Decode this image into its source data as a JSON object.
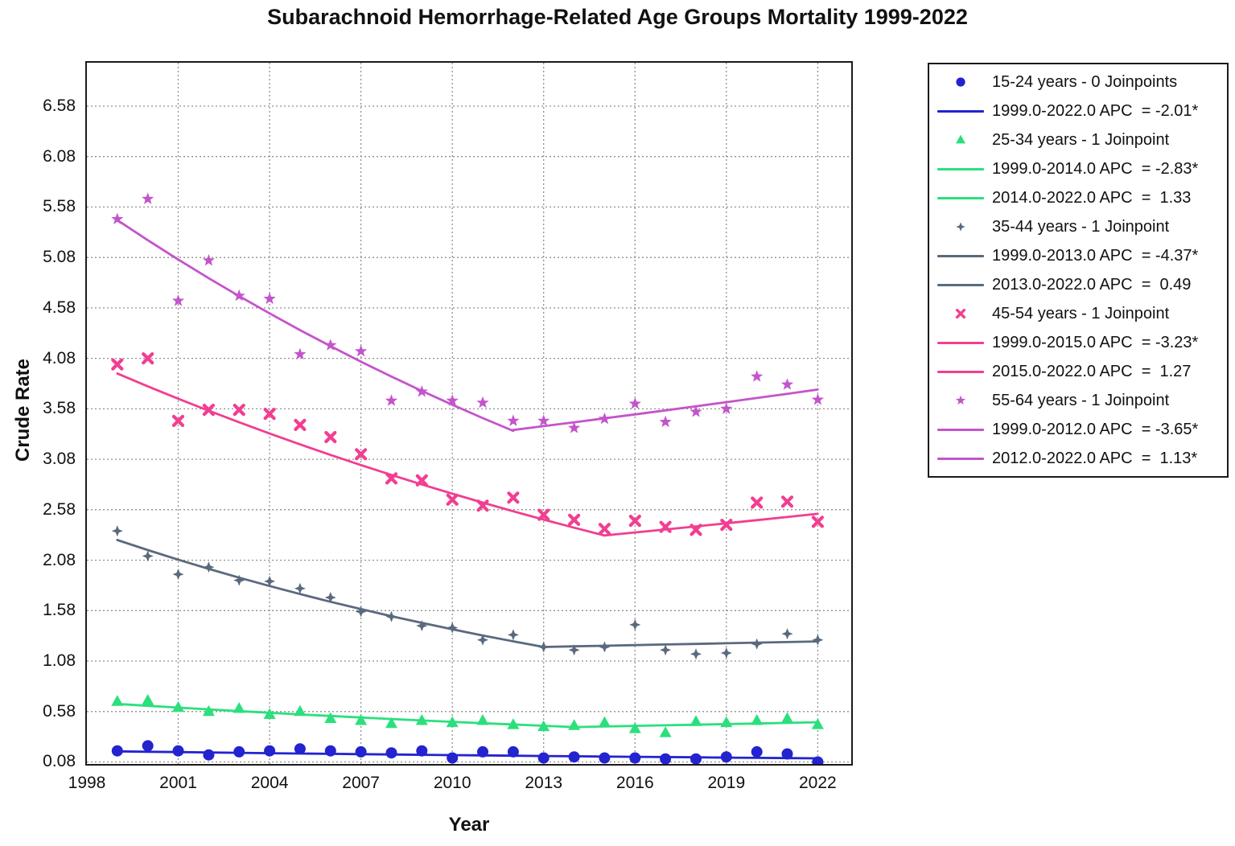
{
  "title": "Subarachnoid Hemorrhage-Related Age Groups Mortality 1999-2022",
  "axes": {
    "x_label": "Year",
    "y_label": "Crude Rate",
    "x_ticks": [
      1998,
      2001,
      2004,
      2007,
      2010,
      2013,
      2016,
      2019,
      2022
    ],
    "y_ticks": [
      0.08,
      0.58,
      1.08,
      1.58,
      2.08,
      2.58,
      3.08,
      3.58,
      4.08,
      4.58,
      5.08,
      5.58,
      6.08,
      6.58
    ],
    "x_range": [
      1998.0,
      2023.1
    ],
    "y_range": [
      0.06,
      7.01
    ],
    "grid": "dotted"
  },
  "colors": {
    "frame": "#1a1a1a",
    "gridline": "#8f8f8f",
    "text": "#111111"
  },
  "chart_data": {
    "type": "scatter",
    "x": [
      1999,
      2000,
      2001,
      2002,
      2003,
      2004,
      2005,
      2006,
      2007,
      2008,
      2009,
      2010,
      2011,
      2012,
      2013,
      2014,
      2015,
      2016,
      2017,
      2018,
      2019,
      2020,
      2021,
      2022
    ],
    "series": [
      {
        "name": "15-24 years",
        "joinpoints": 0,
        "marker": "circle",
        "color": "#2323cf",
        "values": [
          0.19,
          0.24,
          0.19,
          0.15,
          0.18,
          0.19,
          0.21,
          0.19,
          0.18,
          0.17,
          0.19,
          0.12,
          0.18,
          0.18,
          0.12,
          0.13,
          0.12,
          0.12,
          0.11,
          0.11,
          0.13,
          0.18,
          0.16,
          0.08
        ],
        "trend_segments": [
          {
            "period": "1999.0-2022.0",
            "apc": -2.01,
            "significant": true,
            "start_year": 1999,
            "end_year": 2022,
            "start_value": 0.185
          }
        ]
      },
      {
        "name": "25-34 years",
        "joinpoints": 1,
        "marker": "triangle",
        "color": "#2be07c",
        "values": [
          0.68,
          0.69,
          0.62,
          0.58,
          0.61,
          0.55,
          0.58,
          0.51,
          0.49,
          0.46,
          0.49,
          0.47,
          0.49,
          0.45,
          0.43,
          0.44,
          0.47,
          0.41,
          0.37,
          0.48,
          0.47,
          0.49,
          0.51,
          0.45
        ],
        "trend_segments": [
          {
            "period": "1999.0-2014.0",
            "apc": -2.83,
            "significant": true,
            "start_year": 1999,
            "end_year": 2014,
            "start_value": 0.655
          },
          {
            "period": "2014.0-2022.0",
            "apc": 1.33,
            "significant": false,
            "start_year": 2014,
            "end_year": 2022,
            "start_value": 0.426
          }
        ]
      },
      {
        "name": "35-44 years",
        "joinpoints": 1,
        "marker": "diamond4",
        "color": "#5a6a7d",
        "values": [
          2.37,
          2.12,
          1.94,
          2.01,
          1.88,
          1.87,
          1.8,
          1.71,
          1.57,
          1.52,
          1.43,
          1.41,
          1.29,
          1.34,
          1.22,
          1.19,
          1.22,
          1.44,
          1.19,
          1.15,
          1.16,
          1.25,
          1.35,
          1.29
        ],
        "trend_segments": [
          {
            "period": "1999.0-2013.0",
            "apc": -4.37,
            "significant": true,
            "start_year": 1999,
            "end_year": 2013,
            "start_value": 2.28
          },
          {
            "period": "2013.0-2022.0",
            "apc": 0.49,
            "significant": false,
            "start_year": 2013,
            "end_year": 2022,
            "start_value": 1.22
          }
        ]
      },
      {
        "name": "45-54 years",
        "joinpoints": 1,
        "marker": "xcross",
        "color": "#f23e90",
        "values": [
          4.02,
          4.08,
          3.46,
          3.57,
          3.57,
          3.53,
          3.42,
          3.3,
          3.13,
          2.89,
          2.87,
          2.68,
          2.62,
          2.7,
          2.53,
          2.48,
          2.39,
          2.47,
          2.41,
          2.38,
          2.43,
          2.65,
          2.66,
          2.46
        ],
        "trend_segments": [
          {
            "period": "1999.0-2015.0",
            "apc": -3.23,
            "significant": true,
            "start_year": 1999,
            "end_year": 2015,
            "start_value": 3.93
          },
          {
            "period": "2015.0-2022.0",
            "apc": 1.27,
            "significant": false,
            "start_year": 2015,
            "end_year": 2022,
            "start_value": 2.325
          }
        ]
      },
      {
        "name": "55-64 years",
        "joinpoints": 1,
        "marker": "star5",
        "color": "#c454cb",
        "values": [
          5.46,
          5.66,
          4.65,
          5.05,
          4.7,
          4.67,
          4.12,
          4.21,
          4.15,
          3.66,
          3.75,
          3.66,
          3.64,
          3.46,
          3.46,
          3.39,
          3.48,
          3.63,
          3.45,
          3.55,
          3.58,
          3.9,
          3.82,
          3.67
        ],
        "trend_segments": [
          {
            "period": "1999.0-2012.0",
            "apc": -3.65,
            "significant": true,
            "start_year": 1999,
            "end_year": 2012,
            "start_value": 5.45
          },
          {
            "period": "2012.0-2022.0",
            "apc": 1.13,
            "significant": true,
            "start_year": 2012,
            "end_year": 2022,
            "start_value": 3.37
          }
        ]
      }
    ]
  },
  "legend": {
    "rows": [
      {
        "swatch": "marker",
        "series": 0,
        "label": "15-24 years - 0 Joinpoints"
      },
      {
        "swatch": "line",
        "series": 0,
        "label": "1999.0-2022.0 APC  = -2.01*"
      },
      {
        "swatch": "marker",
        "series": 1,
        "label": "25-34 years - 1 Joinpoint"
      },
      {
        "swatch": "line",
        "series": 1,
        "label": "1999.0-2014.0 APC  = -2.83*"
      },
      {
        "swatch": "line",
        "series": 1,
        "label": "2014.0-2022.0 APC  =  1.33"
      },
      {
        "swatch": "marker",
        "series": 2,
        "label": "35-44 years - 1 Joinpoint"
      },
      {
        "swatch": "line",
        "series": 2,
        "label": "1999.0-2013.0 APC  = -4.37*"
      },
      {
        "swatch": "line",
        "series": 2,
        "label": "2013.0-2022.0 APC  =  0.49"
      },
      {
        "swatch": "marker",
        "series": 3,
        "label": "45-54 years - 1 Joinpoint"
      },
      {
        "swatch": "line",
        "series": 3,
        "label": "1999.0-2015.0 APC  = -3.23*"
      },
      {
        "swatch": "line",
        "series": 3,
        "label": "2015.0-2022.0 APC  =  1.27"
      },
      {
        "swatch": "marker",
        "series": 4,
        "label": "55-64 years - 1 Joinpoint"
      },
      {
        "swatch": "line",
        "series": 4,
        "label": "1999.0-2012.0 APC  = -3.65*"
      },
      {
        "swatch": "line",
        "series": 4,
        "label": "2012.0-2022.0 APC  =  1.13*"
      }
    ]
  }
}
